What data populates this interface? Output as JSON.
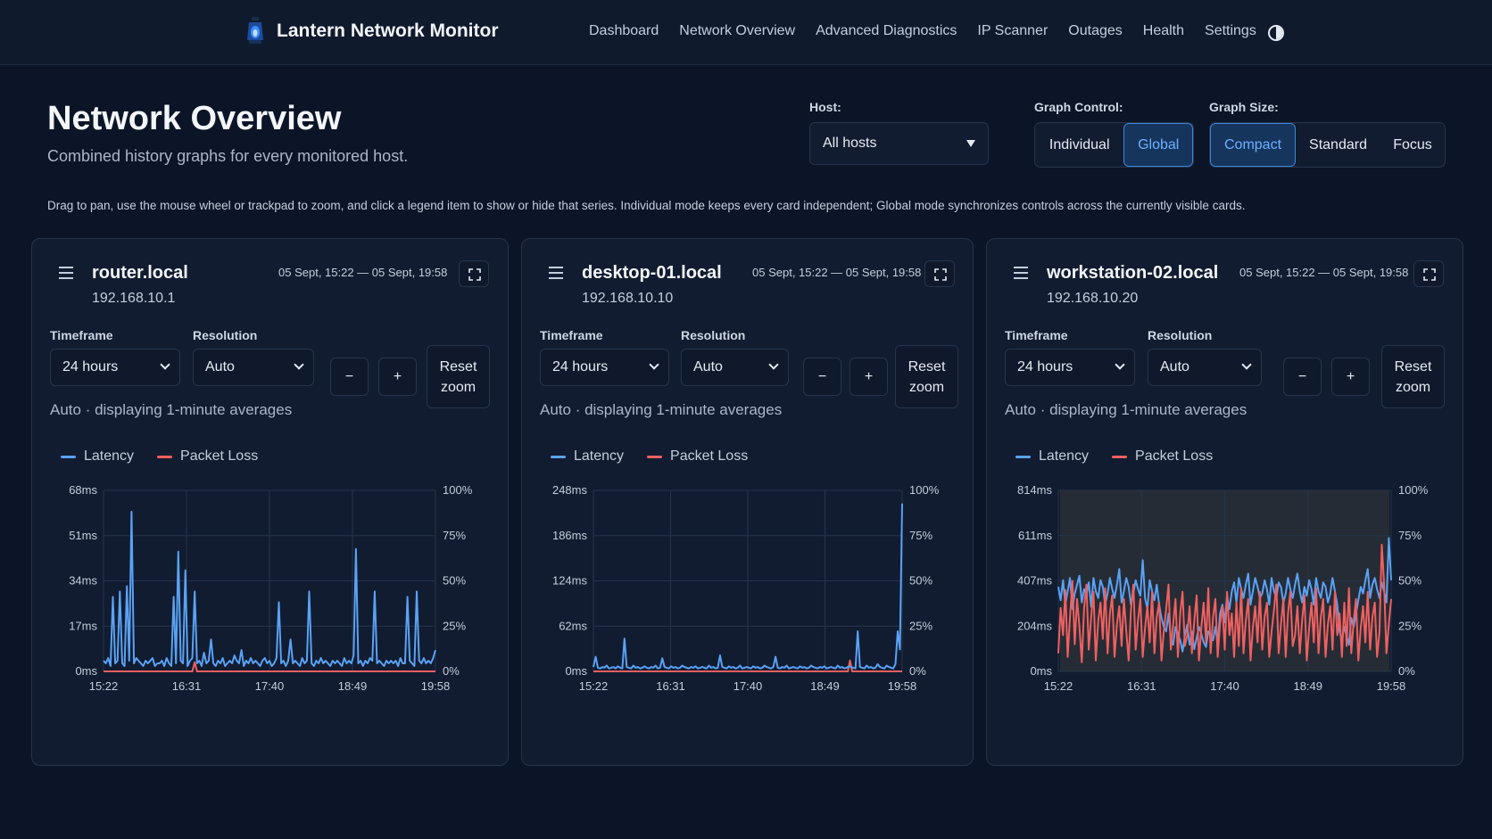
{
  "app": {
    "title": "Lantern Network Monitor",
    "logo_icon": "lantern-icon",
    "nav": [
      "Dashboard",
      "Network Overview",
      "Advanced Diagnostics",
      "IP Scanner",
      "Outages",
      "Health",
      "Settings"
    ],
    "theme_icon": "contrast-icon"
  },
  "page": {
    "title": "Network Overview",
    "subtitle": "Combined history graphs for every monitored host.",
    "help": "Drag to pan, use the mouse wheel or trackpad to zoom, and click a legend item to show or hide that series. Individual mode keeps every card independent; Global mode synchronizes controls across the currently visible cards."
  },
  "controls": {
    "host_label": "Host:",
    "host_value": "All hosts",
    "graph_control_label": "Graph Control:",
    "graph_control_options": [
      "Individual",
      "Global"
    ],
    "graph_control_selected": "Global",
    "graph_size_label": "Graph Size:",
    "graph_size_options": [
      "Compact",
      "Standard",
      "Focus"
    ],
    "graph_size_selected": "Compact"
  },
  "colors": {
    "latency": "#5aa2f5",
    "packet_loss": "#f0605f",
    "accent": "#3f85d6"
  },
  "cards": [
    {
      "host": "router.local",
      "ip": "192.168.10.1",
      "range": "05 Sept, 15:22 — 05 Sept, 19:58",
      "timeframe_label": "Timeframe",
      "timeframe": "24 hours",
      "resolution_label": "Resolution",
      "resolution": "Auto",
      "zoom_out": "−",
      "zoom_in": "+",
      "reset": "Reset zoom",
      "note": "Auto · displaying 1-minute averages",
      "legend": [
        "Latency",
        "Packet Loss"
      ]
    },
    {
      "host": "desktop-01.local",
      "ip": "192.168.10.10",
      "range": "05 Sept, 15:22 — 05 Sept, 19:58",
      "timeframe_label": "Timeframe",
      "timeframe": "24 hours",
      "resolution_label": "Resolution",
      "resolution": "Auto",
      "zoom_out": "−",
      "zoom_in": "+",
      "reset": "Reset zoom",
      "note": "Auto · displaying 1-minute averages",
      "legend": [
        "Latency",
        "Packet Loss"
      ]
    },
    {
      "host": "workstation-02.local",
      "ip": "192.168.10.20",
      "range": "05 Sept, 15:22 — 05 Sept, 19:58",
      "timeframe_label": "Timeframe",
      "timeframe": "24 hours",
      "resolution_label": "Resolution",
      "resolution": "Auto",
      "zoom_out": "−",
      "zoom_in": "+",
      "reset": "Reset zoom",
      "note": "Auto · displaying 1-minute averages",
      "legend": [
        "Latency",
        "Packet Loss"
      ]
    }
  ],
  "chart_data": [
    {
      "type": "line",
      "x_ticks": [
        "15:22",
        "16:31",
        "17:40",
        "18:49",
        "19:58"
      ],
      "y_left_ticks": [
        "68ms",
        "51ms",
        "34ms",
        "17ms",
        "0ms"
      ],
      "y_right_ticks": [
        "100%",
        "75%",
        "50%",
        "25%",
        "0%"
      ],
      "ylim_left": [
        0,
        68
      ],
      "ylim_right": [
        0,
        100
      ],
      "series": [
        {
          "name": "Latency",
          "axis": "left",
          "values": [
            4,
            3,
            5,
            2,
            28,
            3,
            4,
            30,
            3,
            2,
            32,
            4,
            60,
            3,
            5,
            4,
            3,
            2,
            4,
            3,
            4,
            5,
            2,
            3,
            3,
            4,
            2,
            5,
            3,
            2,
            28,
            3,
            45,
            4,
            3,
            38,
            2,
            4,
            5,
            30,
            3,
            4,
            2,
            7,
            3,
            4,
            12,
            3,
            2,
            4,
            3,
            5,
            2,
            3,
            4,
            3,
            6,
            4,
            3,
            8,
            2,
            4,
            3,
            5,
            3,
            4,
            3,
            2,
            4,
            5,
            3,
            4,
            2,
            3,
            5,
            26,
            3,
            4,
            2,
            4,
            12,
            3,
            4,
            3,
            2,
            5,
            3,
            4,
            30,
            3,
            2,
            4,
            3,
            5,
            3,
            4,
            3,
            2,
            4,
            3,
            4,
            3,
            2,
            5,
            3,
            4,
            3,
            6,
            46,
            3,
            4,
            2,
            4,
            3,
            5,
            4,
            30,
            3,
            4,
            3,
            2,
            4,
            3,
            4,
            3,
            4,
            2,
            5,
            3,
            3,
            28,
            4,
            3,
            2,
            30,
            4,
            3,
            5,
            3,
            4,
            3,
            5,
            8
          ]
        },
        {
          "name": "Packet Loss",
          "axis": "right",
          "values": [
            0,
            0,
            0,
            0,
            0,
            0,
            0,
            0,
            0,
            0,
            0,
            0,
            0,
            0,
            0,
            0,
            0,
            0,
            0,
            0,
            0,
            0,
            0,
            0,
            0,
            0,
            0,
            0,
            0,
            0,
            0,
            0,
            0,
            0,
            0,
            0,
            0,
            0,
            0,
            5,
            0,
            0,
            0,
            0,
            0,
            0,
            0,
            0,
            0,
            0,
            0,
            0,
            0,
            0,
            0,
            0,
            0,
            0,
            0,
            0,
            0,
            0,
            0,
            0,
            0,
            0,
            0,
            0,
            0,
            0,
            0,
            0,
            0,
            0,
            0,
            0,
            0,
            0,
            0,
            0,
            0,
            0,
            0,
            0,
            0,
            0,
            0,
            0,
            0,
            0,
            0,
            0,
            0,
            0,
            0,
            0,
            0,
            0,
            0,
            0,
            0,
            0,
            0,
            0,
            0,
            0,
            0,
            0,
            0,
            0,
            0,
            0,
            0,
            0,
            0,
            0,
            0,
            0,
            0,
            0,
            0,
            0,
            0,
            0,
            0,
            0,
            0,
            0,
            0,
            0,
            0,
            0,
            0,
            0,
            0,
            0,
            0,
            0,
            0,
            0,
            0,
            0,
            0
          ]
        }
      ]
    },
    {
      "type": "line",
      "x_ticks": [
        "15:22",
        "16:31",
        "17:40",
        "18:49",
        "19:58"
      ],
      "y_left_ticks": [
        "248ms",
        "186ms",
        "124ms",
        "62ms",
        "0ms"
      ],
      "y_right_ticks": [
        "100%",
        "75%",
        "50%",
        "25%",
        "0%"
      ],
      "ylim_left": [
        0,
        248
      ],
      "ylim_right": [
        0,
        100
      ],
      "series": [
        {
          "name": "Latency",
          "axis": "left",
          "values": [
            6,
            20,
            5,
            4,
            6,
            5,
            8,
            4,
            5,
            6,
            4,
            7,
            5,
            4,
            45,
            6,
            5,
            4,
            8,
            5,
            6,
            4,
            5,
            7,
            5,
            4,
            6,
            5,
            8,
            4,
            5,
            18,
            6,
            5,
            4,
            7,
            5,
            6,
            4,
            5,
            8,
            6,
            5,
            4,
            6,
            5,
            7,
            4,
            5,
            6,
            5,
            4,
            8,
            5,
            6,
            4,
            5,
            22,
            6,
            5,
            4,
            7,
            5,
            6,
            4,
            5,
            8,
            4,
            5,
            6,
            5,
            4,
            7,
            5,
            6,
            4,
            5,
            8,
            6,
            5,
            4,
            6,
            20,
            5,
            4,
            6,
            5,
            8,
            4,
            5,
            6,
            5,
            4,
            7,
            5,
            6,
            4,
            5,
            8,
            6,
            5,
            4,
            6,
            5,
            7,
            4,
            5,
            6,
            5,
            4,
            8,
            5,
            6,
            4,
            5,
            7,
            6,
            5,
            4,
            55,
            6,
            5,
            4,
            8,
            5,
            6,
            4,
            5,
            10,
            6,
            5,
            4,
            8,
            6,
            5,
            4,
            10,
            55,
            30,
            230
          ]
        },
        {
          "name": "Packet Loss",
          "axis": "right",
          "values": [
            0,
            0,
            0,
            0,
            0,
            0,
            0,
            0,
            0,
            0,
            0,
            0,
            0,
            0,
            0,
            0,
            0,
            0,
            0,
            0,
            0,
            0,
            0,
            0,
            0,
            0,
            0,
            0,
            0,
            0,
            0,
            0,
            0,
            0,
            0,
            0,
            0,
            0,
            0,
            0,
            0,
            0,
            0,
            0,
            0,
            0,
            0,
            0,
            0,
            0,
            0,
            0,
            0,
            0,
            0,
            0,
            0,
            0,
            0,
            0,
            0,
            0,
            0,
            0,
            0,
            0,
            0,
            0,
            0,
            0,
            0,
            0,
            0,
            0,
            0,
            0,
            0,
            0,
            0,
            0,
            0,
            0,
            0,
            0,
            0,
            0,
            0,
            0,
            0,
            0,
            0,
            0,
            0,
            0,
            0,
            0,
            0,
            0,
            0,
            0,
            0,
            0,
            0,
            0,
            0,
            0,
            0,
            0,
            0,
            0,
            0,
            0,
            0,
            0,
            0,
            0,
            0,
            0,
            6,
            0,
            0,
            0,
            0,
            0,
            0,
            0,
            0,
            0,
            0,
            0,
            0,
            0,
            0,
            0,
            0,
            0,
            0,
            0,
            0,
            0,
            0,
            0,
            0
          ]
        }
      ]
    },
    {
      "type": "line",
      "x_ticks": [
        "15:22",
        "16:31",
        "17:40",
        "18:49",
        "19:58"
      ],
      "y_left_ticks": [
        "814ms",
        "611ms",
        "407ms",
        "204ms",
        "0ms"
      ],
      "y_right_ticks": [
        "100%",
        "75%",
        "50%",
        "25%",
        "0%"
      ],
      "ylim_left": [
        0,
        814
      ],
      "ylim_right": [
        0,
        100
      ],
      "series": [
        {
          "name": "Latency",
          "axis": "left",
          "values": [
            380,
            320,
            410,
            300,
            360,
            420,
            280,
            350,
            390,
            430,
            310,
            370,
            340,
            400,
            290,
            420,
            360,
            330,
            410,
            380,
            300,
            350,
            420,
            370,
            330,
            390,
            460,
            310,
            360,
            420,
            380,
            300,
            350,
            410,
            370,
            340,
            500,
            330,
            280,
            410,
            360,
            320,
            390,
            300,
            240,
            200,
            180,
            260,
            150,
            120,
            200,
            170,
            140,
            90,
            160,
            210,
            120,
            180,
            100,
            150,
            200,
            170,
            130,
            110,
            180,
            160,
            140,
            200,
            120,
            260,
            300,
            220,
            340,
            280,
            360,
            400,
            310,
            420,
            370,
            330,
            390,
            440,
            300,
            360,
            420,
            380,
            330,
            350,
            410,
            370,
            300,
            420,
            360,
            330,
            400,
            380,
            310,
            350,
            420,
            370,
            330,
            390,
            440,
            360,
            310,
            380,
            340,
            410,
            370,
            300,
            420,
            360,
            330,
            400,
            380,
            310,
            350,
            420,
            360,
            300,
            180,
            140,
            200,
            160,
            120,
            240,
            200,
            260,
            320,
            380,
            350,
            410,
            460,
            330,
            390,
            420,
            370,
            330,
            400,
            360,
            310,
            600,
            410
          ]
        },
        {
          "name": "Packet Loss",
          "axis": "right",
          "values": [
            10,
            35,
            20,
            45,
            8,
            30,
            50,
            15,
            40,
            25,
            5,
            35,
            48,
            12,
            30,
            44,
            6,
            28,
            38,
            18,
            46,
            10,
            32,
            42,
            8,
            26,
            36,
            14,
            40,
            22,
            6,
            34,
            48,
            12,
            28,
            40,
            8,
            24,
            36,
            16,
            44,
            10,
            30,
            38,
            6,
            22,
            34,
            48,
            12,
            26,
            40,
            8,
            32,
            44,
            14,
            20,
            36,
            10,
            28,
            42,
            6,
            24,
            38,
            16,
            46,
            10,
            30,
            40,
            8,
            26,
            36,
            12,
            44,
            20,
            32,
            8,
            38,
            14,
            46,
            10,
            28,
            40,
            6,
            24,
            36,
            16,
            44,
            12,
            30,
            38,
            8,
            22,
            34,
            48,
            10,
            26,
            40,
            8,
            32,
            44,
            14,
            20,
            36,
            10,
            28,
            42,
            6,
            24,
            38,
            16,
            46,
            10,
            30,
            40,
            8,
            26,
            36,
            12,
            44,
            20,
            32,
            8,
            38,
            14,
            46,
            10,
            28,
            40,
            6,
            24,
            36,
            16,
            44,
            12,
            30,
            38,
            8,
            22,
            70,
            48,
            10,
            26,
            40
          ]
        }
      ]
    }
  ]
}
